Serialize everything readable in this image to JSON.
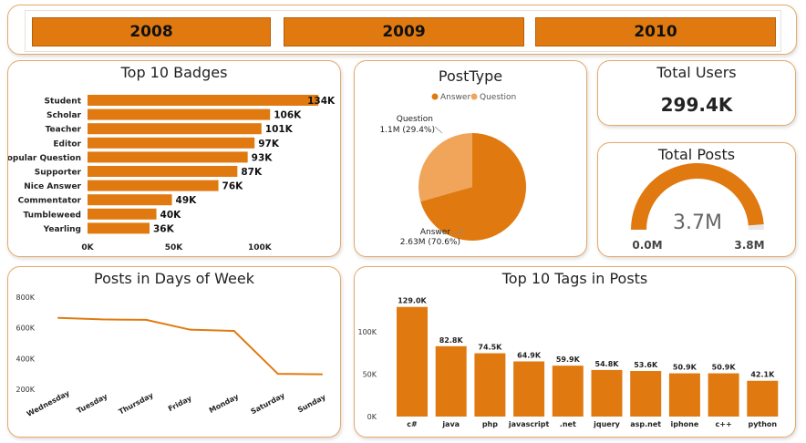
{
  "years": [
    "2008",
    "2009",
    "2010"
  ],
  "colors": {
    "accent": "#e07a10",
    "accent_light": "#f0a55a",
    "border": "#e5a96a",
    "text": "#222222"
  },
  "badges": {
    "title": "Top 10 Badges",
    "chart_data": {
      "type": "bar",
      "orientation": "horizontal",
      "categories": [
        "Student",
        "Scholar",
        "Teacher",
        "Editor",
        "Popular Question",
        "Supporter",
        "Nice Answer",
        "Commentator",
        "Tumbleweed",
        "Yearling"
      ],
      "values": [
        134,
        106,
        101,
        97,
        93,
        87,
        76,
        49,
        40,
        36
      ],
      "labels": [
        "134K",
        "106K",
        "101K",
        "97K",
        "93K",
        "87K",
        "76K",
        "49K",
        "40K",
        "36K"
      ],
      "xticks": [
        "0K",
        "50K",
        "100K"
      ],
      "xlim": [
        0,
        135
      ]
    }
  },
  "posttype": {
    "title": "PostType",
    "legend": [
      "Answer",
      "Question"
    ],
    "chart_data": {
      "type": "pie",
      "categories": [
        "Answer",
        "Question"
      ],
      "values": [
        70.6,
        29.4
      ],
      "labels": [
        "2.63M (70.6%)",
        "1.1M (29.4%)"
      ]
    }
  },
  "total_users": {
    "title": "Total Users",
    "value": "299.4K"
  },
  "total_posts": {
    "title": "Total Posts",
    "value": "3.7M",
    "min_label": "0.0M",
    "max_label": "3.8M",
    "fraction": 0.974
  },
  "days": {
    "title": "Posts in Days of Week",
    "chart_data": {
      "type": "line",
      "categories": [
        "Wednesday",
        "Tuesday",
        "Thursday",
        "Friday",
        "Monday",
        "Saturday",
        "Sunday"
      ],
      "values": [
        665,
        655,
        652,
        588,
        580,
        300,
        297
      ],
      "yticks": [
        "800K",
        "600K",
        "400K",
        "200K"
      ],
      "ylim": [
        200,
        800
      ]
    }
  },
  "tags": {
    "title": "Top 10 Tags in Posts",
    "chart_data": {
      "type": "bar",
      "categories": [
        "c#",
        "java",
        "php",
        "javascript",
        ".net",
        "jquery",
        "asp.net",
        "iphone",
        "c++",
        "python"
      ],
      "values": [
        129.0,
        82.8,
        74.5,
        64.9,
        59.9,
        54.8,
        53.6,
        50.9,
        50.9,
        42.1
      ],
      "labels": [
        "129.0K",
        "82.8K",
        "74.5K",
        "64.9K",
        "59.9K",
        "54.8K",
        "53.6K",
        "50.9K",
        "50.9K",
        "42.1K"
      ],
      "yticks": [
        "100K",
        "50K",
        "0K"
      ],
      "ylim": [
        0,
        133
      ]
    }
  }
}
